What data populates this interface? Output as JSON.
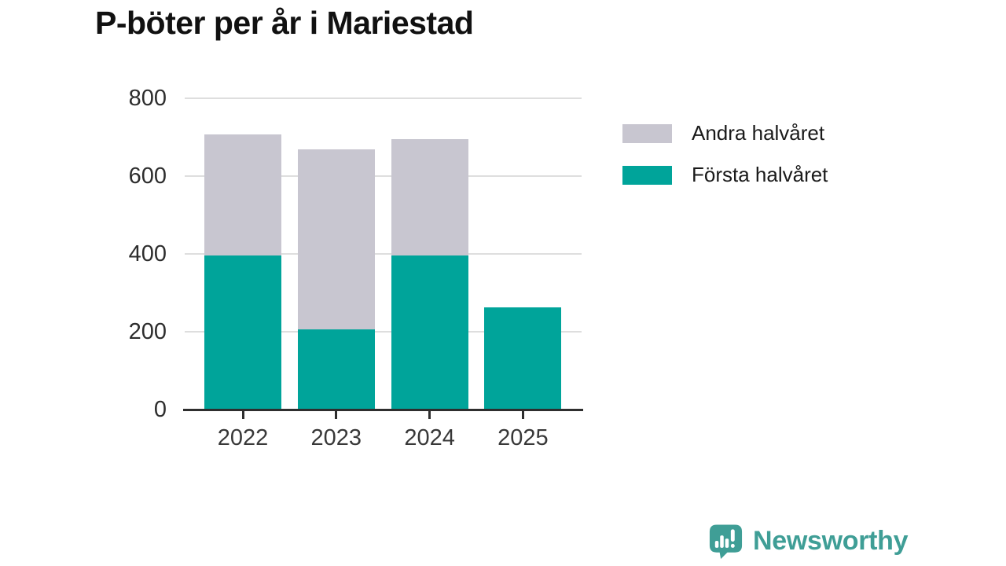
{
  "title": "P-böter per år i Mariestad",
  "chart_data": {
    "type": "bar",
    "stacked": true,
    "title": "P-böter per år i Mariestad",
    "categories": [
      "2022",
      "2023",
      "2024",
      "2025"
    ],
    "series": [
      {
        "name": "Första halvåret",
        "color": "#00a49a",
        "values": [
          395,
          207,
          395,
          262
        ]
      },
      {
        "name": "Andra halvåret",
        "color": "#c8c6d0",
        "values": [
          312,
          461,
          300,
          0
        ]
      }
    ],
    "totals": [
      707,
      668,
      695,
      262
    ],
    "xlabel": "",
    "ylabel": "",
    "ylim": [
      0,
      800
    ],
    "yticks": [
      0,
      200,
      400,
      600,
      800
    ],
    "grid": true,
    "legend_position": "right",
    "legend_order": [
      "Andra halvåret",
      "Första halvåret"
    ]
  },
  "footer": {
    "brand": "Newsworthy",
    "logo_icon": "bar-chart-speech-bubble-icon"
  },
  "colors": {
    "first_half": "#00a49a",
    "second_half": "#c8c6d0",
    "gridline": "#dedede",
    "axis": "#2e2e2e",
    "brand_teal": "#3f9e96",
    "title_text": "#111111"
  }
}
